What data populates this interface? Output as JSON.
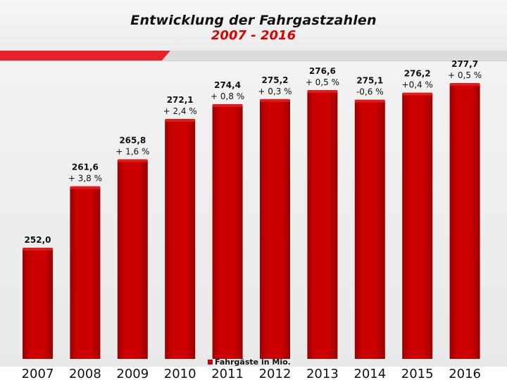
{
  "header": {
    "title": "Entwicklung der Fahrgastzahlen",
    "subtitle": "2007 - 2016"
  },
  "colors": {
    "bar": "#cc0000",
    "bar_dark": "#9a0000",
    "accent_red": "#e00000"
  },
  "chart_data": {
    "type": "bar",
    "title": "Entwicklung der Fahrgastzahlen",
    "subtitle": "2007 - 2016",
    "categories": [
      "2007",
      "2008",
      "2009",
      "2010",
      "2011",
      "2012",
      "2013",
      "2014",
      "2015",
      "2016"
    ],
    "series": [
      {
        "name": "Fahrgäste in Mio.",
        "values": [
          252.0,
          261.6,
          265.8,
          272.1,
          274.4,
          275.2,
          276.6,
          275.1,
          276.2,
          277.7
        ]
      }
    ],
    "value_labels": [
      "252,0",
      "261,6",
      "265,8",
      "272,1",
      "274,4",
      "275,2",
      "276,6",
      "275,1",
      "276,2",
      "277,7"
    ],
    "change_labels": [
      "",
      "+ 3,8 %",
      "+ 1,6 %",
      "+ 2,4 %",
      "+ 0,8 %",
      "+ 0,3 %",
      "+ 0,5 %",
      "-0,6 %",
      "+0,4 %",
      "+ 0,5 %"
    ],
    "legend": "Fahrgäste in Mio.",
    "legend_position": "bottom",
    "grid": false
  }
}
